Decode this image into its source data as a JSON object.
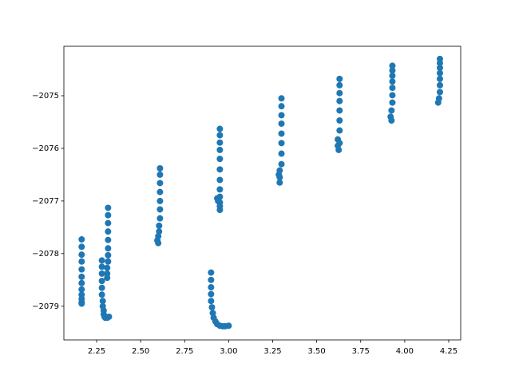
{
  "chart_data": {
    "type": "scatter",
    "color": "#1f77b4",
    "x": [
      2.165,
      2.165,
      2.165,
      2.165,
      2.165,
      2.165,
      2.165,
      2.165,
      2.165,
      2.165,
      2.165,
      2.165,
      2.28,
      2.28,
      2.28,
      2.28,
      2.28,
      2.28,
      2.285,
      2.285,
      2.29,
      2.29,
      2.295,
      2.3,
      2.31,
      2.32,
      2.315,
      2.315,
      2.315,
      2.315,
      2.315,
      2.315,
      2.315,
      2.315,
      2.31,
      2.31,
      2.31,
      2.61,
      2.61,
      2.61,
      2.61,
      2.61,
      2.61,
      2.61,
      2.605,
      2.605,
      2.6,
      2.595,
      2.6,
      2.95,
      2.95,
      2.95,
      2.95,
      2.95,
      2.95,
      2.95,
      2.95,
      2.95,
      2.95,
      2.95,
      2.95,
      2.935,
      2.94,
      2.9,
      2.9,
      2.9,
      2.9,
      2.9,
      2.905,
      2.91,
      2.915,
      2.925,
      2.935,
      2.95,
      2.965,
      2.98,
      3.0,
      3.3,
      3.3,
      3.3,
      3.3,
      3.3,
      3.3,
      3.3,
      3.3,
      3.29,
      3.29,
      3.29,
      3.285,
      3.63,
      3.63,
      3.63,
      3.63,
      3.63,
      3.63,
      3.63,
      3.62,
      3.62,
      3.625,
      3.63,
      3.93,
      3.93,
      3.93,
      3.93,
      3.93,
      3.93,
      3.93,
      3.925,
      3.92,
      3.925,
      4.2,
      4.2,
      4.2,
      4.2,
      4.2,
      4.2,
      4.2,
      4.195,
      4.19
    ],
    "values": [
      -2077.73,
      -2077.87,
      -2078.02,
      -2078.15,
      -2078.3,
      -2078.44,
      -2078.56,
      -2078.68,
      -2078.78,
      -2078.86,
      -2078.92,
      -2078.95,
      -2078.13,
      -2078.25,
      -2078.38,
      -2078.52,
      -2078.65,
      -2078.78,
      -2078.9,
      -2079.0,
      -2079.08,
      -2079.15,
      -2079.2,
      -2079.22,
      -2079.22,
      -2079.2,
      -2077.13,
      -2077.27,
      -2077.42,
      -2077.58,
      -2077.74,
      -2077.9,
      -2078.03,
      -2078.15,
      -2078.27,
      -2078.38,
      -2078.46,
      -2076.38,
      -2076.5,
      -2076.66,
      -2076.83,
      -2077.0,
      -2077.16,
      -2077.33,
      -2077.47,
      -2077.58,
      -2077.67,
      -2077.75,
      -2077.8,
      -2075.63,
      -2075.75,
      -2075.89,
      -2076.03,
      -2076.2,
      -2076.4,
      -2076.6,
      -2076.78,
      -2076.92,
      -2077.03,
      -2077.1,
      -2077.17,
      -2076.95,
      -2077.0,
      -2078.36,
      -2078.5,
      -2078.64,
      -2078.77,
      -2078.9,
      -2079.02,
      -2079.13,
      -2079.22,
      -2079.29,
      -2079.34,
      -2079.37,
      -2079.38,
      -2079.38,
      -2079.37,
      -2075.05,
      -2075.2,
      -2075.37,
      -2075.53,
      -2075.72,
      -2075.9,
      -2076.1,
      -2076.3,
      -2076.42,
      -2076.55,
      -2076.65,
      -2076.5,
      -2074.68,
      -2074.8,
      -2074.95,
      -2075.1,
      -2075.28,
      -2075.47,
      -2075.66,
      -2075.83,
      -2075.95,
      -2076.03,
      -2075.9,
      -2074.43,
      -2074.52,
      -2074.62,
      -2074.73,
      -2074.85,
      -2074.99,
      -2075.13,
      -2075.28,
      -2075.4,
      -2075.47,
      -2074.3,
      -2074.38,
      -2074.47,
      -2074.57,
      -2074.68,
      -2074.8,
      -2074.93,
      -2075.05,
      -2075.13
    ],
    "xlim": [
      2.064,
      4.318
    ],
    "xticks": [
      2.25,
      {
        "value": 2.5,
        "label": "2.50"
      },
      2.75,
      {
        "value": 3,
        "label": "3.00"
      },
      3.25,
      {
        "value": 3.5,
        "label": "3.50"
      },
      3.75,
      {
        "value": 4,
        "label": "4.00"
      },
      4.25
    ],
    "ylim": [
      -2079.64,
      -2074.06
    ],
    "yticks": [
      {
        "value": -2079,
        "label": "−2079"
      },
      {
        "value": -2078,
        "label": "−2078"
      },
      {
        "value": -2077,
        "label": "−2077"
      },
      {
        "value": -2076,
        "label": "−2076"
      },
      {
        "value": -2075,
        "label": "−2075"
      }
    ]
  }
}
